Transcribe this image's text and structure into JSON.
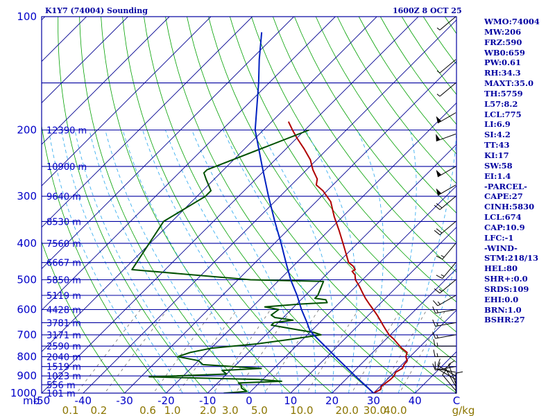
{
  "header": {
    "title": "K1Y7 (74004) Sounding",
    "time": "1600Z  8 OCT 25"
  },
  "colors": {
    "background": "#ffffff",
    "frame": "#0000a0",
    "isobar": "#0000a0",
    "isotherm": "#000090",
    "dry_adiabat": "#00a000",
    "moist_adiabat": "#3caff0",
    "mixing_ratio": "#707070",
    "temperature": "#b00000",
    "dewpoint": "#005000",
    "parcel": "#0020c0",
    "wind_barb": "#000000",
    "text_blue": "#0000c8",
    "text_mixing": "#8b7500"
  },
  "stats": [
    "WMO:74004",
    "MW:206",
    "FRZ:590",
    "WB0:659",
    "PW:0.61",
    "RH:34.3",
    "MAXT:35.0",
    "TH:5759",
    "L57:8.2",
    "LCL:775",
    "LI:6.9",
    "SI:4.2",
    "TT:43",
    "KI:17",
    "SW:58",
    "EI:1.4",
    "-PARCEL-",
    "CAPE:27",
    "CINH:5830",
    "LCL:674",
    "CAP:10.9",
    "LFC:-1",
    "-WIND-",
    "STM:218/13",
    "HEL:80",
    "SHR+:0.0",
    "SRDS:109",
    "EHI:0.0",
    "BRN:1.0",
    "BSHR:27"
  ],
  "chart_data": {
    "type": "line",
    "title": "K1Y7 (74004) Sounding",
    "pressure_labels": [
      "100",
      "200",
      "300",
      "400",
      "500",
      "600",
      "700",
      "800",
      "900",
      "1000"
    ],
    "pressure_label_values": [
      100,
      200,
      300,
      400,
      500,
      600,
      700,
      800,
      900,
      1000
    ],
    "height_labels": [
      {
        "p": 200,
        "text": "12390 m"
      },
      {
        "p": 250,
        "text": "10900 m"
      },
      {
        "p": 300,
        "text": "9640 m"
      },
      {
        "p": 350,
        "text": "8530 m"
      },
      {
        "p": 400,
        "text": "7560 m"
      },
      {
        "p": 450,
        "text": "6667 m"
      },
      {
        "p": 500,
        "text": "5850 m"
      },
      {
        "p": 550,
        "text": "5119 m"
      },
      {
        "p": 600,
        "text": "4428 m"
      },
      {
        "p": 650,
        "text": "3781 m"
      },
      {
        "p": 700,
        "text": "3171 m"
      },
      {
        "p": 750,
        "text": "2590 m"
      },
      {
        "p": 800,
        "text": "2040 m"
      },
      {
        "p": 850,
        "text": "1519 m"
      },
      {
        "p": 900,
        "text": "1023 m"
      },
      {
        "p": 950,
        "text": "556 m"
      },
      {
        "p": 1000,
        "text": "101 m"
      }
    ],
    "xlabel": "mb",
    "temperature_ticks": [
      "-50",
      "-40",
      "-30",
      "-20",
      "-10",
      "0",
      "10",
      "20",
      "30",
      "40",
      "C"
    ],
    "temperature_tick_values": [
      -50,
      -40,
      -30,
      -20,
      -10,
      0,
      10,
      20,
      30,
      40,
      50
    ],
    "mixing_ratio_labels": [
      "0.1",
      "0.2",
      "0.6",
      "1.0",
      "2.0",
      "3.0",
      "5.0",
      "10.0",
      "20.0",
      "30.0",
      "40.0",
      "g/kg"
    ],
    "mixing_ratio_values": [
      0.1,
      0.2,
      0.6,
      1.0,
      2.0,
      3.0,
      5.0,
      10.0,
      20.0,
      30.0,
      40.0
    ],
    "x_range_c": [
      -50,
      50
    ],
    "y_range_hpa": [
      100,
      1000
    ],
    "y_scale": "log",
    "skew_degrees": 45,
    "series": [
      {
        "key": "temperature",
        "points": [
          [
            1015,
            27.5
          ],
          [
            1005,
            27.8
          ],
          [
            1000,
            30.0
          ],
          [
            980,
            30.8
          ],
          [
            960,
            30.3
          ],
          [
            940,
            30.5
          ],
          [
            920,
            30.8
          ],
          [
            900,
            30.8
          ],
          [
            880,
            30.3
          ],
          [
            860,
            31.0
          ],
          [
            840,
            30.5
          ],
          [
            820,
            30.3
          ],
          [
            800,
            29.0
          ],
          [
            780,
            28.3
          ],
          [
            760,
            26.0
          ],
          [
            740,
            24.0
          ],
          [
            720,
            22.0
          ],
          [
            700,
            19.7
          ],
          [
            680,
            17.8
          ],
          [
            660,
            15.9
          ],
          [
            640,
            14.0
          ],
          [
            620,
            12.0
          ],
          [
            600,
            9.8
          ],
          [
            580,
            7.5
          ],
          [
            560,
            5.2
          ],
          [
            540,
            3.0
          ],
          [
            520,
            0.8
          ],
          [
            500,
            -1.7
          ],
          [
            485,
            -3.0
          ],
          [
            475,
            -4.5
          ],
          [
            470,
            -4.2
          ],
          [
            460,
            -5.5
          ],
          [
            450,
            -7.5
          ],
          [
            420,
            -11.0
          ],
          [
            400,
            -13.5
          ],
          [
            370,
            -17.5
          ],
          [
            340,
            -22.0
          ],
          [
            310,
            -26.5
          ],
          [
            290,
            -31.0
          ],
          [
            280,
            -34.0
          ],
          [
            270,
            -35.2
          ],
          [
            255,
            -38.5
          ],
          [
            240,
            -41.5
          ],
          [
            225,
            -45.5
          ],
          [
            210,
            -50.0
          ],
          [
            200,
            -53.0
          ],
          [
            190,
            -56.0
          ]
        ]
      },
      {
        "key": "dewpoint",
        "points": [
          [
            1015,
            -5.0
          ],
          [
            1000,
            -6.0
          ],
          [
            990,
            -1.0
          ],
          [
            970,
            -3.0
          ],
          [
            950,
            -4.0
          ],
          [
            940,
            -5.0
          ],
          [
            930,
            5.0
          ],
          [
            920,
            -1.0
          ],
          [
            905,
            -28.0
          ],
          [
            890,
            -10.0
          ],
          [
            870,
            -12.0
          ],
          [
            860,
            -3.0
          ],
          [
            840,
            -18.0
          ],
          [
            820,
            -20.0
          ],
          [
            800,
            -26.0
          ],
          [
            780,
            -24.0
          ],
          [
            760,
            -20.0
          ],
          [
            740,
            -10.0
          ],
          [
            720,
            -3.0
          ],
          [
            700,
            3.3
          ],
          [
            690,
            1.0
          ],
          [
            680,
            -3.0
          ],
          [
            660,
            -11.0
          ],
          [
            650,
            -11.0
          ],
          [
            640,
            -7.0
          ],
          [
            630,
            -12.0
          ],
          [
            620,
            -13.5
          ],
          [
            600,
            -13.0
          ],
          [
            590,
            -17.0
          ],
          [
            580,
            -9.0
          ],
          [
            575,
            -3.0
          ],
          [
            565,
            -4.0
          ],
          [
            560,
            -7.0
          ],
          [
            550,
            -7.0
          ],
          [
            505,
            -9.0
          ],
          [
            500,
            -27.0
          ],
          [
            470,
            -58.0
          ],
          [
            350,
            -62.0
          ],
          [
            300,
            -58.0
          ],
          [
            290,
            -58.0
          ],
          [
            270,
            -62.0
          ],
          [
            260,
            -64.0
          ],
          [
            255,
            -64.0
          ],
          [
            200,
            -49.0
          ]
        ]
      },
      {
        "key": "parcel",
        "points": [
          [
            1000,
            30.0
          ],
          [
            960,
            26.7
          ],
          [
            920,
            23.2
          ],
          [
            880,
            19.6
          ],
          [
            840,
            15.9
          ],
          [
            800,
            12.0
          ],
          [
            760,
            8.0
          ],
          [
            720,
            3.7
          ],
          [
            700,
            1.5
          ],
          [
            680,
            -0.6
          ],
          [
            650,
            -3.0
          ],
          [
            600,
            -7.5
          ],
          [
            550,
            -12.0
          ],
          [
            500,
            -17.3
          ],
          [
            450,
            -22.6
          ],
          [
            400,
            -28.4
          ],
          [
            350,
            -35.2
          ],
          [
            300,
            -42.8
          ],
          [
            250,
            -51.5
          ],
          [
            200,
            -62.0
          ],
          [
            150,
            -72.5
          ],
          [
            130,
            -78.0
          ],
          [
            110,
            -84.0
          ]
        ]
      }
    ],
    "winds": [
      {
        "p": 1005,
        "dir": 0,
        "spd": 10
      },
      {
        "p": 985,
        "dir": 320,
        "spd": 10
      },
      {
        "p": 960,
        "dir": 330,
        "spd": 10
      },
      {
        "p": 945,
        "dir": 340,
        "spd": 10
      },
      {
        "p": 920,
        "dir": 300,
        "spd": 10
      },
      {
        "p": 900,
        "dir": 300,
        "spd": 10
      },
      {
        "p": 880,
        "dir": 280,
        "spd": 10
      },
      {
        "p": 850,
        "dir": 260,
        "spd": 10
      },
      {
        "p": 800,
        "dir": 270,
        "spd": 15
      },
      {
        "p": 750,
        "dir": 270,
        "spd": 15
      },
      {
        "p": 700,
        "dir": 260,
        "spd": 15
      },
      {
        "p": 650,
        "dir": 260,
        "spd": 15
      },
      {
        "p": 600,
        "dir": 260,
        "spd": 15
      },
      {
        "p": 550,
        "dir": 240,
        "spd": 15
      },
      {
        "p": 500,
        "dir": 230,
        "spd": 15
      },
      {
        "p": 450,
        "dir": 220,
        "spd": 15
      },
      {
        "p": 400,
        "dir": 220,
        "spd": 15
      },
      {
        "p": 350,
        "dir": 230,
        "spd": 20
      },
      {
        "p": 300,
        "dir": 230,
        "spd": 20
      },
      {
        "p": 280,
        "dir": 240,
        "spd": 50
      },
      {
        "p": 250,
        "dir": 240,
        "spd": 50
      },
      {
        "p": 205,
        "dir": 250,
        "spd": 50
      },
      {
        "p": 180,
        "dir": 240,
        "spd": 50
      },
      {
        "p": 150,
        "dir": 230,
        "spd": 5
      },
      {
        "p": 130,
        "dir": 230,
        "spd": 5
      },
      {
        "p": 100,
        "dir": 230,
        "spd": 5
      }
    ],
    "grid": true
  }
}
